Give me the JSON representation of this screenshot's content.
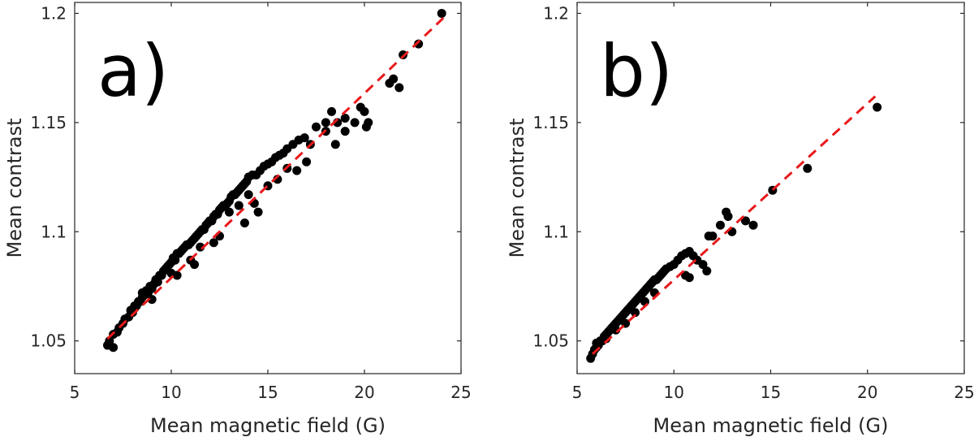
{
  "chart_data": [
    {
      "type": "scatter",
      "panel_label": "a)",
      "xlabel": "Mean magnetic field (G)",
      "ylabel": "Mean contrast",
      "xlim": [
        5,
        25
      ],
      "ylim": [
        1.035,
        1.205
      ],
      "xticks": [
        5,
        10,
        15,
        20,
        25
      ],
      "yticks": [
        1.05,
        1.1,
        1.15,
        1.2
      ],
      "xtick_labels": [
        "5",
        "10",
        "15",
        "20",
        "25"
      ],
      "ytick_labels": [
        "1.05",
        "1.1",
        "1.15",
        "1.2"
      ],
      "fit_line": {
        "x": [
          6.7,
          24.1
        ],
        "y": [
          1.051,
          1.198
        ],
        "style": "dashed"
      },
      "colors": {
        "points": "#000000",
        "fit": "#e8191b",
        "axes": "#262626"
      },
      "series": [
        {
          "x": [
            6.7,
            6.8,
            7.0,
            7.0,
            7.2,
            7.3,
            7.5,
            7.6,
            7.8,
            7.9,
            8.0,
            8.1,
            8.2,
            8.3,
            8.4,
            8.5,
            8.5,
            8.6,
            8.7,
            8.8,
            8.9,
            9.0,
            9.1,
            9.2,
            9.3,
            9.4,
            9.5,
            9.6,
            9.7,
            9.8,
            9.9,
            10.0,
            10.1,
            10.2,
            10.3,
            10.4,
            10.5,
            10.6,
            10.7,
            10.8,
            10.9,
            11.0,
            11.1,
            11.2,
            11.3,
            11.4,
            11.5,
            11.6,
            11.7,
            11.8,
            11.9,
            12.0,
            12.1,
            12.2,
            12.3,
            12.4,
            12.5,
            12.6,
            12.7,
            12.8,
            12.9,
            13.0,
            13.1,
            13.2,
            13.3,
            13.4,
            13.5,
            13.6,
            13.7,
            13.8,
            13.9,
            14.0,
            14.2,
            14.4,
            14.6,
            14.8,
            15.0,
            15.2,
            15.4,
            15.6,
            15.8,
            16.0,
            16.3,
            16.6,
            16.9,
            17.2,
            17.5,
            18.0,
            18.3,
            18.6,
            19.0,
            19.5,
            20.0,
            21.3,
            21.5,
            21.8,
            22.0,
            22.8,
            24.0,
            9.0,
            10.0,
            11.0,
            11.5,
            12.0,
            12.5,
            13.0,
            13.5,
            14.0,
            14.5,
            15.0,
            15.5,
            16.0,
            16.5,
            17.0,
            18.5,
            19.0,
            20.1,
            20.2,
            19.8,
            18.0,
            14.3,
            13.8,
            12.2,
            11.2,
            10.3
          ],
          "y": [
            1.048,
            1.05,
            1.047,
            1.053,
            1.054,
            1.056,
            1.058,
            1.06,
            1.061,
            1.064,
            1.063,
            1.066,
            1.066,
            1.068,
            1.068,
            1.07,
            1.072,
            1.071,
            1.073,
            1.072,
            1.075,
            1.074,
            1.076,
            1.078,
            1.077,
            1.08,
            1.08,
            1.082,
            1.083,
            1.084,
            1.085,
            1.086,
            1.088,
            1.087,
            1.09,
            1.09,
            1.091,
            1.092,
            1.093,
            1.094,
            1.094,
            1.095,
            1.096,
            1.097,
            1.098,
            1.099,
            1.1,
            1.101,
            1.101,
            1.103,
            1.104,
            1.105,
            1.105,
            1.107,
            1.108,
            1.108,
            1.11,
            1.111,
            1.112,
            1.112,
            1.113,
            1.114,
            1.116,
            1.117,
            1.117,
            1.118,
            1.119,
            1.12,
            1.121,
            1.122,
            1.123,
            1.125,
            1.126,
            1.126,
            1.128,
            1.13,
            1.131,
            1.132,
            1.134,
            1.135,
            1.136,
            1.138,
            1.14,
            1.142,
            1.143,
            1.14,
            1.148,
            1.15,
            1.155,
            1.15,
            1.152,
            1.15,
            1.155,
            1.168,
            1.17,
            1.166,
            1.181,
            1.186,
            1.2,
            1.069,
            1.081,
            1.087,
            1.093,
            1.105,
            1.098,
            1.109,
            1.112,
            1.117,
            1.109,
            1.121,
            1.124,
            1.129,
            1.128,
            1.132,
            1.14,
            1.146,
            1.148,
            1.15,
            1.157,
            1.146,
            1.113,
            1.104,
            1.095,
            1.085,
            1.08
          ]
        }
      ]
    },
    {
      "type": "scatter",
      "panel_label": "b)",
      "xlabel": "Mean magnetic field (G)",
      "ylabel": "Mean contrast",
      "xlim": [
        5,
        25
      ],
      "ylim": [
        1.035,
        1.205
      ],
      "xticks": [
        5,
        10,
        15,
        20,
        25
      ],
      "yticks": [
        1.05,
        1.1,
        1.15,
        1.2
      ],
      "xtick_labels": [
        "5",
        "10",
        "15",
        "20",
        "25"
      ],
      "ytick_labels": [
        "1.05",
        "1.1",
        "1.15",
        "1.2"
      ],
      "fit_line": {
        "x": [
          5.8,
          20.4
        ],
        "y": [
          1.044,
          1.162
        ],
        "style": "dashed"
      },
      "colors": {
        "points": "#000000",
        "fit": "#e8191b",
        "axes": "#262626"
      },
      "series": [
        {
          "x": [
            5.7,
            5.8,
            5.9,
            6.0,
            6.1,
            6.2,
            6.3,
            6.4,
            6.5,
            6.6,
            6.7,
            6.8,
            6.9,
            7.0,
            7.1,
            7.2,
            7.3,
            7.4,
            7.5,
            7.6,
            7.7,
            7.8,
            7.9,
            8.0,
            8.1,
            8.2,
            8.3,
            8.4,
            8.5,
            8.6,
            8.7,
            8.8,
            8.9,
            9.0,
            9.1,
            9.2,
            9.3,
            9.4,
            9.5,
            9.6,
            9.8,
            10.0,
            10.2,
            10.4,
            10.6,
            10.8,
            11.0,
            11.2,
            11.5,
            11.8,
            12.0,
            12.4,
            12.7,
            12.8,
            13.0,
            13.7,
            14.1,
            15.1,
            16.9,
            20.5,
            6.0,
            6.5,
            7.0,
            7.5,
            8.0,
            8.5,
            9.0,
            10.8,
            10.6,
            11.7
          ],
          "y": [
            1.042,
            1.044,
            1.046,
            1.047,
            1.048,
            1.05,
            1.05,
            1.052,
            1.053,
            1.054,
            1.055,
            1.056,
            1.057,
            1.058,
            1.059,
            1.06,
            1.061,
            1.062,
            1.063,
            1.064,
            1.065,
            1.066,
            1.067,
            1.068,
            1.069,
            1.07,
            1.071,
            1.072,
            1.073,
            1.074,
            1.075,
            1.076,
            1.077,
            1.078,
            1.078,
            1.079,
            1.08,
            1.081,
            1.082,
            1.083,
            1.084,
            1.085,
            1.087,
            1.089,
            1.09,
            1.091,
            1.089,
            1.087,
            1.085,
            1.098,
            1.098,
            1.103,
            1.109,
            1.107,
            1.1,
            1.105,
            1.103,
            1.119,
            1.129,
            1.157,
            1.049,
            1.051,
            1.055,
            1.058,
            1.063,
            1.068,
            1.072,
            1.079,
            1.08,
            1.082
          ]
        }
      ]
    }
  ]
}
